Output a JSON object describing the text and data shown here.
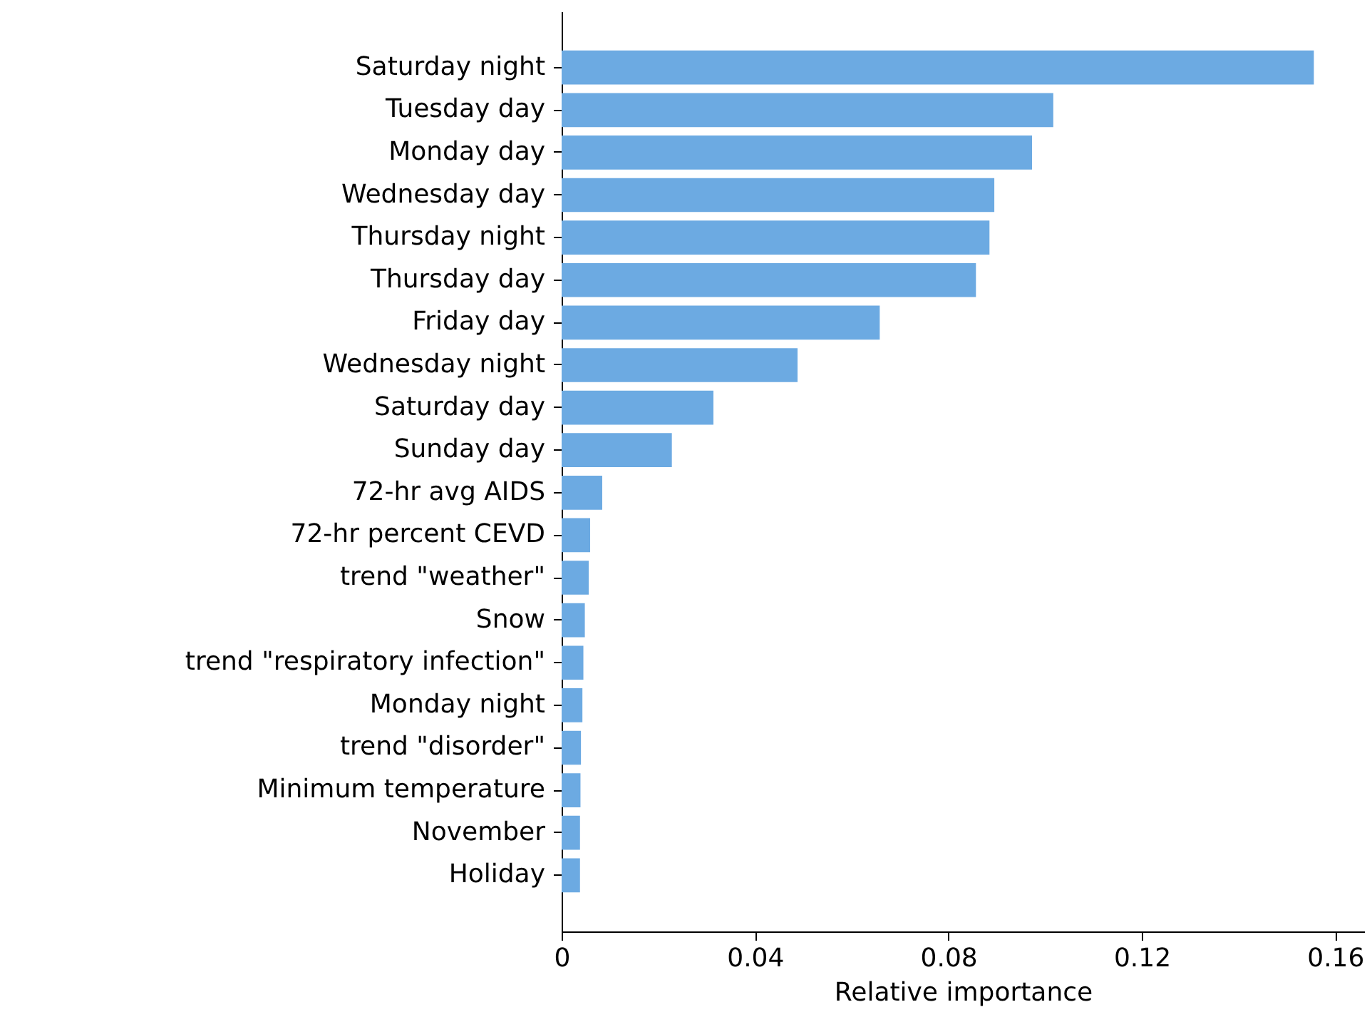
{
  "chart_data": {
    "type": "bar",
    "orientation": "horizontal",
    "xlabel": "Relative importance",
    "categories": [
      "Saturday night",
      "Tuesday day",
      "Monday day",
      "Wednesday day",
      "Thursday night",
      "Thursday day",
      "Friday day",
      "Wednesday night",
      "Saturday day",
      "Sunday day",
      "72-hr avg AIDS",
      "72-hr percent CEVD",
      "trend \"weather\"",
      "Snow",
      "trend \"respiratory infection\"",
      "Monday night",
      "trend \"disorder\"",
      "Minimum temperature",
      "November",
      "Holiday"
    ],
    "values": [
      0.1556,
      0.1017,
      0.0973,
      0.0895,
      0.0885,
      0.0857,
      0.0658,
      0.0488,
      0.0314,
      0.0228,
      0.0084,
      0.0059,
      0.0056,
      0.0048,
      0.0045,
      0.0043,
      0.004,
      0.0039,
      0.0038,
      0.0038
    ],
    "color": "#6caae2",
    "xlim": [
      0,
      0.166
    ],
    "xticks": [
      0,
      0.04,
      0.08,
      0.12,
      0.16
    ],
    "grid": false
  }
}
